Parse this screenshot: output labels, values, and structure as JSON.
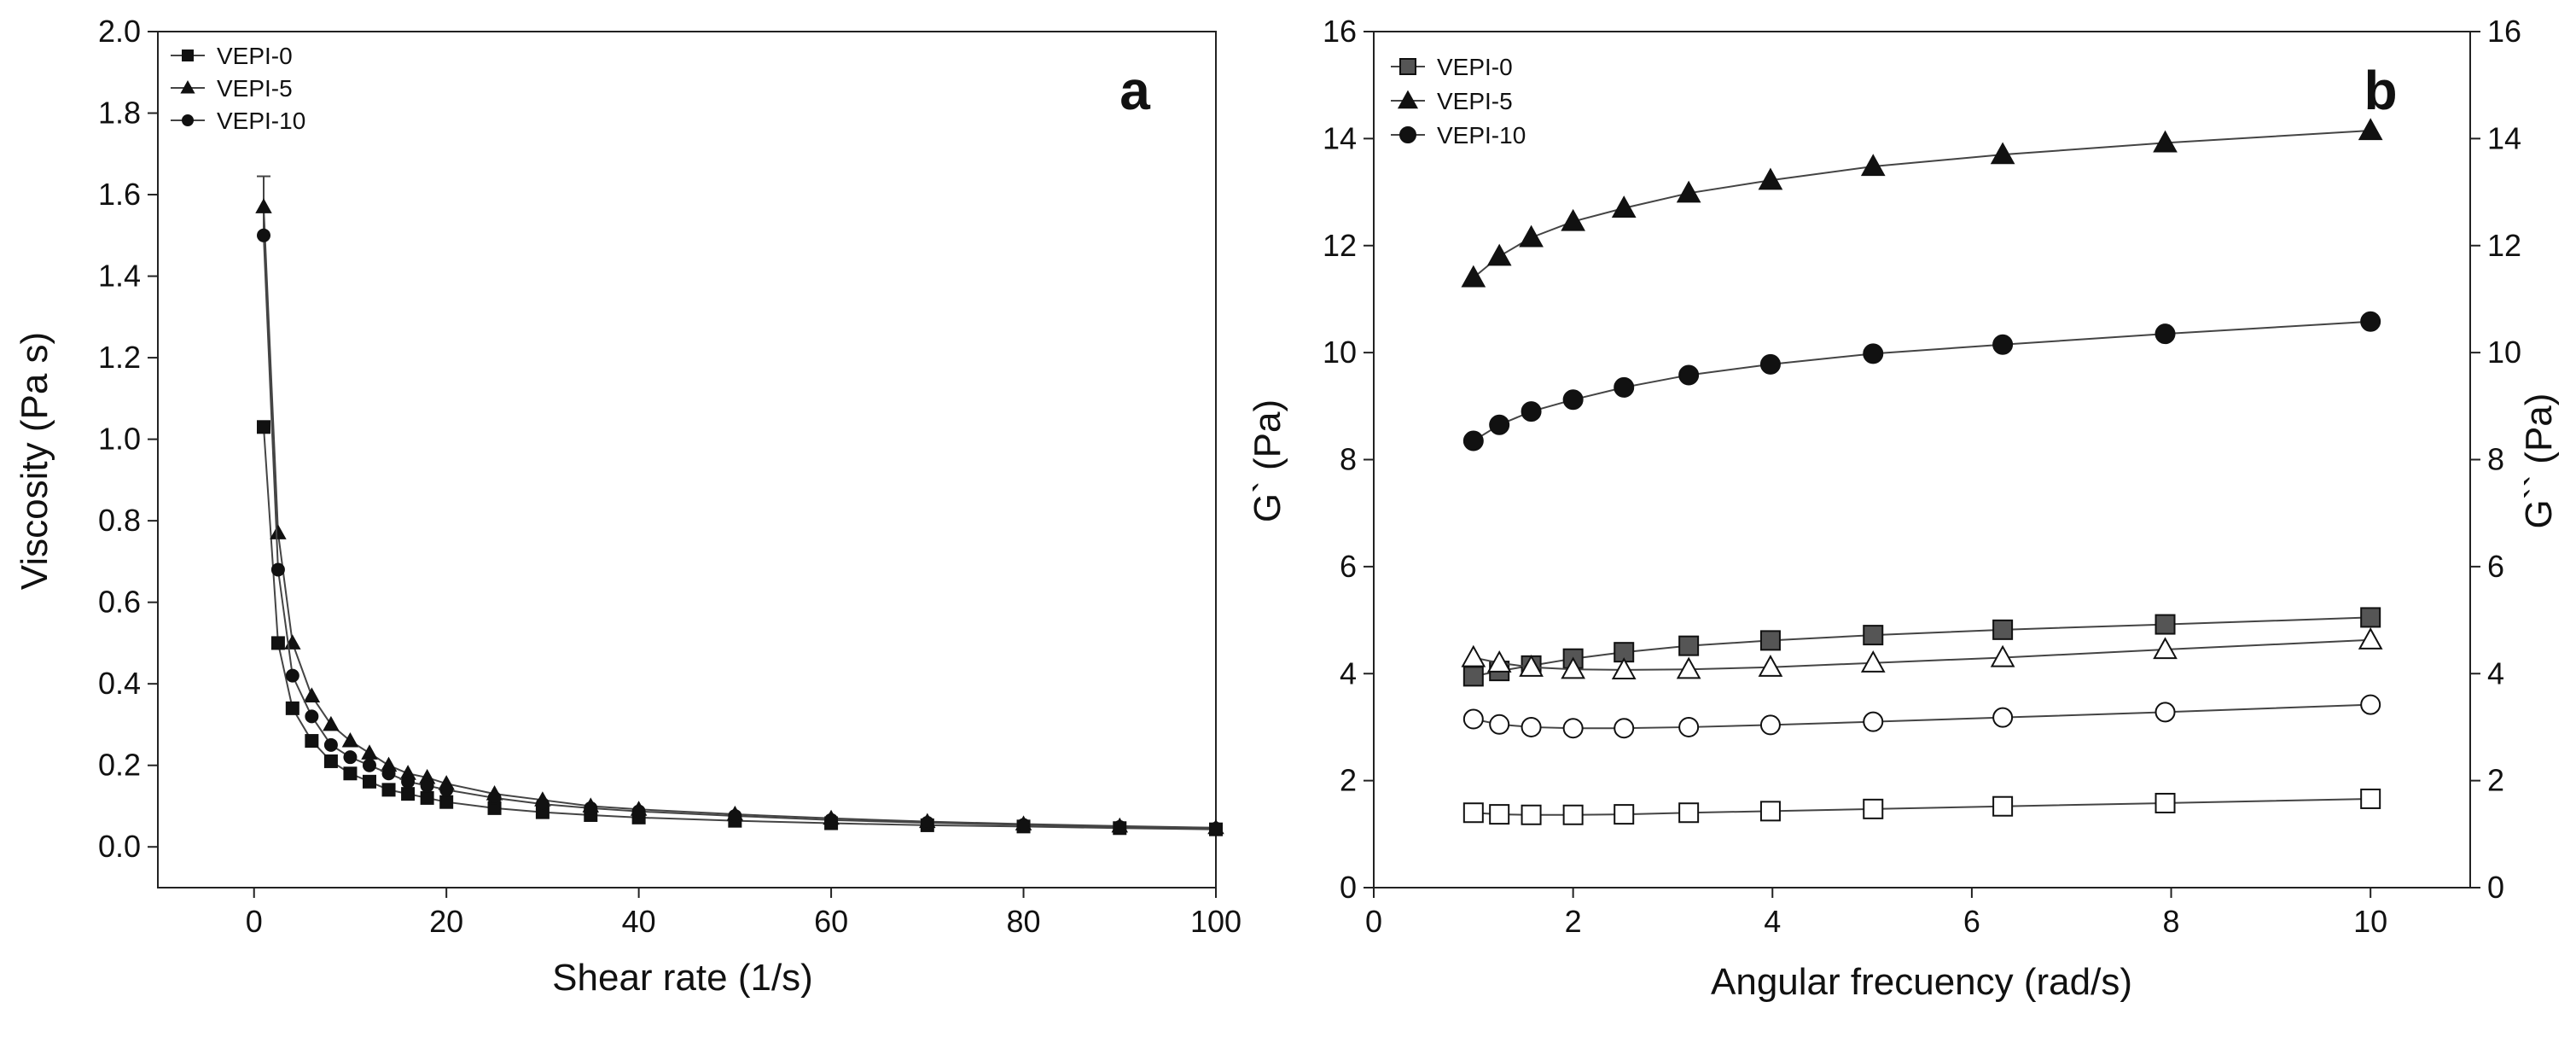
{
  "chart_data": [
    {
      "panel": "a",
      "type": "scatter",
      "xlabel": "Shear rate (1/s)",
      "ylabel": "Viscosity (Pa s)",
      "xlim": [
        -10,
        100
      ],
      "ylim": [
        -0.1,
        2.0
      ],
      "xticks": [
        0,
        20,
        40,
        60,
        80,
        100
      ],
      "xtick_labels": [
        "0",
        "20",
        "40",
        "60",
        "80",
        "100"
      ],
      "yticks": [
        0.0,
        0.2,
        0.4,
        0.6,
        0.8,
        1.0,
        1.2,
        1.4,
        1.6,
        1.8,
        2.0
      ],
      "ytick_labels": [
        "0.0",
        "0.2",
        "0.4",
        "0.6",
        "0.8",
        "1.0",
        "1.2",
        "1.4",
        "1.6",
        "1.8",
        "2.0"
      ],
      "legend_position": "top-left",
      "series": [
        {
          "name": "VEPI-0",
          "marker": "square",
          "fill": "#111111",
          "x": [
            1,
            2.5,
            4,
            6,
            8,
            10,
            12,
            14,
            16,
            18,
            20,
            25,
            30,
            35,
            40,
            50,
            60,
            70,
            80,
            90,
            100
          ],
          "y": [
            1.03,
            0.5,
            0.34,
            0.26,
            0.21,
            0.18,
            0.16,
            0.14,
            0.13,
            0.12,
            0.11,
            0.095,
            0.085,
            0.078,
            0.072,
            0.064,
            0.058,
            0.053,
            0.05,
            0.046,
            0.043
          ]
        },
        {
          "name": "VEPI-5",
          "marker": "triangle",
          "fill": "#111111",
          "x": [
            1,
            2.5,
            4,
            6,
            8,
            10,
            12,
            14,
            16,
            18,
            20,
            25,
            30,
            35,
            40,
            50,
            60,
            70,
            80,
            90,
            100
          ],
          "y": [
            1.57,
            0.77,
            0.5,
            0.37,
            0.3,
            0.26,
            0.23,
            0.2,
            0.18,
            0.17,
            0.155,
            0.13,
            0.115,
            0.1,
            0.092,
            0.08,
            0.07,
            0.062,
            0.056,
            0.051,
            0.047
          ]
        },
        {
          "name": "VEPI-10",
          "marker": "circle",
          "fill": "#111111",
          "x": [
            1,
            2.5,
            4,
            6,
            8,
            10,
            12,
            14,
            16,
            18,
            20,
            25,
            30,
            35,
            40,
            50,
            60,
            70,
            80,
            90,
            100
          ],
          "y": [
            1.5,
            0.68,
            0.42,
            0.32,
            0.25,
            0.22,
            0.2,
            0.18,
            0.16,
            0.15,
            0.14,
            0.12,
            0.105,
            0.095,
            0.087,
            0.076,
            0.066,
            0.059,
            0.054,
            0.049,
            0.045
          ]
        }
      ]
    },
    {
      "panel": "b",
      "type": "scatter",
      "xlabel": "Angular frecuency (rad/s)",
      "ylabel": "G` (Pa)",
      "ylabel_right": "G`` (Pa)",
      "xlim": [
        0,
        11
      ],
      "ylim": [
        0,
        16
      ],
      "xticks": [
        0,
        2,
        4,
        6,
        8,
        10
      ],
      "xtick_labels": [
        "0",
        "2",
        "4",
        "6",
        "8",
        "10"
      ],
      "yticks": [
        0,
        2,
        4,
        6,
        8,
        10,
        12,
        14,
        16
      ],
      "ytick_labels": [
        "0",
        "2",
        "4",
        "6",
        "8",
        "10",
        "12",
        "14",
        "16"
      ],
      "legend_position": "top-left",
      "series": [
        {
          "name": "VEPI-0",
          "marker": "square",
          "fill": "#555555",
          "legend": true,
          "x": [
            1,
            1.26,
            1.58,
            2,
            2.51,
            3.16,
            3.98,
            5.01,
            6.31,
            7.94,
            10
          ],
          "y": [
            3.95,
            4.05,
            4.15,
            4.28,
            4.4,
            4.52,
            4.62,
            4.72,
            4.82,
            4.92,
            5.05
          ]
        },
        {
          "name": "VEPI-5",
          "marker": "triangle",
          "fill": "#111111",
          "legend": true,
          "x": [
            1,
            1.26,
            1.58,
            2,
            2.51,
            3.16,
            3.98,
            5.01,
            6.31,
            7.94,
            10
          ],
          "y": [
            11.4,
            11.8,
            12.15,
            12.45,
            12.7,
            12.98,
            13.22,
            13.48,
            13.7,
            13.92,
            14.15
          ]
        },
        {
          "name": "VEPI-10",
          "marker": "circle",
          "fill": "#111111",
          "legend": true,
          "x": [
            1,
            1.26,
            1.58,
            2,
            2.51,
            3.16,
            3.98,
            5.01,
            6.31,
            7.94,
            10
          ],
          "y": [
            8.35,
            8.65,
            8.9,
            9.12,
            9.35,
            9.58,
            9.78,
            9.98,
            10.15,
            10.35,
            10.58
          ]
        },
        {
          "name": "VEPI-0 G``",
          "marker": "square",
          "fill": "none",
          "legend": false,
          "x": [
            1,
            1.26,
            1.58,
            2,
            2.51,
            3.16,
            3.98,
            5.01,
            6.31,
            7.94,
            10
          ],
          "y": [
            1.4,
            1.37,
            1.36,
            1.36,
            1.37,
            1.4,
            1.43,
            1.47,
            1.52,
            1.58,
            1.66
          ]
        },
        {
          "name": "VEPI-5 G``",
          "marker": "triangle",
          "fill": "none",
          "legend": false,
          "x": [
            1,
            1.26,
            1.58,
            2,
            2.51,
            3.16,
            3.98,
            5.01,
            6.31,
            7.94,
            10
          ],
          "y": [
            4.3,
            4.2,
            4.12,
            4.08,
            4.07,
            4.08,
            4.12,
            4.2,
            4.3,
            4.45,
            4.63
          ]
        },
        {
          "name": "VEPI-10 G``",
          "marker": "circle",
          "fill": "none",
          "legend": false,
          "x": [
            1,
            1.26,
            1.58,
            2,
            2.51,
            3.16,
            3.98,
            5.01,
            6.31,
            7.94,
            10
          ],
          "y": [
            3.15,
            3.05,
            3.0,
            2.98,
            2.98,
            3.0,
            3.04,
            3.1,
            3.18,
            3.28,
            3.42
          ]
        }
      ]
    }
  ]
}
